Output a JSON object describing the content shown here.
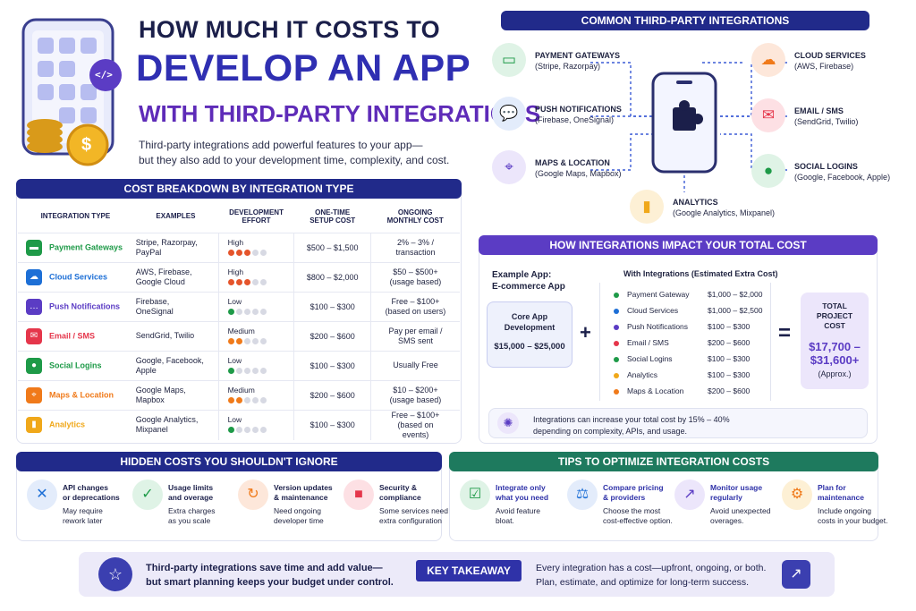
{
  "title": {
    "line1": "HOW MUCH IT COSTS TO",
    "line2": "DEVELOP AN APP",
    "line3": "WITH THIRD-PARTY INTEGRATIONS"
  },
  "intro": {
    "line1": "Third-party integrations add powerful features to your app—",
    "line2": "but they also add to your development time, complexity, and cost."
  },
  "cost_breakdown": {
    "header": "COST BREAKDOWN BY INTEGRATION TYPE",
    "columns": [
      "INTEGRATION TYPE",
      "EXAMPLES",
      "DEVELOPMENT EFFORT",
      "ONE-TIME SETUP COST",
      "ONGOING MONTHLY COST"
    ],
    "rows": [
      {
        "name": "Payment Gateways",
        "examples": "Stripe, Razorpay, PayPal",
        "effort": "High",
        "filled": 3,
        "setup": "$500 – $1,500",
        "monthly": "2% – 3% / transaction",
        "color": "#1e9a48",
        "icon": "credit-card-icon",
        "glyph": "▬"
      },
      {
        "name": "Cloud Services",
        "examples": "AWS, Firebase, Google Cloud",
        "effort": "High",
        "filled": 3,
        "setup": "$800 – $2,000",
        "monthly": "$50 – $500+ (usage based)",
        "color": "#1d6fd6",
        "icon": "cloud-upload-icon",
        "glyph": "☁"
      },
      {
        "name": "Push Notifications",
        "examples": "Firebase, OneSignal",
        "effort": "Low",
        "filled": 1,
        "setup": "$100 – $300",
        "monthly": "Free – $100+ (based on users)",
        "color": "#5b3cc4",
        "icon": "chat-bubble-icon",
        "glyph": "…"
      },
      {
        "name": "Email / SMS",
        "examples": "SendGrid, Twilio",
        "effort": "Medium",
        "filled": 2,
        "setup": "$200 – $600",
        "monthly": "Pay per email / SMS sent",
        "color": "#e5364b",
        "icon": "mail-icon",
        "glyph": "✉"
      },
      {
        "name": "Social Logins",
        "examples": "Google, Facebook, Apple",
        "effort": "Low",
        "filled": 1,
        "setup": "$100 – $300",
        "monthly": "Usually Free",
        "color": "#1e9a48",
        "icon": "user-icon",
        "glyph": "●"
      },
      {
        "name": "Maps & Location",
        "examples": "Google Maps, Mapbox",
        "effort": "Medium",
        "filled": 2,
        "setup": "$200 – $600",
        "monthly": "$10 – $200+ (usage based)",
        "color": "#f07a1a",
        "icon": "location-pin-icon",
        "glyph": "⌖"
      },
      {
        "name": "Analytics",
        "examples": "Google Analytics, Mixpanel",
        "effort": "Low",
        "filled": 1,
        "setup": "$100 – $300",
        "monthly": "Free – $100+ (based on events)",
        "color": "#f0a81a",
        "icon": "bar-chart-icon",
        "glyph": "▮"
      }
    ]
  },
  "integrations": {
    "header": "COMMON THIRD-PARTY INTEGRATIONS",
    "items": [
      {
        "title": "PAYMENT GATEWAYS",
        "sub": "(Stripe, Razorpay)",
        "icon": "credit-card-icon",
        "glyph": "▭",
        "bg": "#dff3e6",
        "fg": "#1e9a48"
      },
      {
        "title": "PUSH NOTIFICATIONS",
        "sub": "(Firebase, OneSignal)",
        "icon": "chat-bubble-icon",
        "glyph": "💬",
        "bg": "#e3ecfb",
        "fg": "#1d6fd6"
      },
      {
        "title": "MAPS & LOCATION",
        "sub": "(Google Maps, Mapbox)",
        "icon": "location-pin-icon",
        "glyph": "⌖",
        "bg": "#ece6fb",
        "fg": "#5b3cc4"
      },
      {
        "title": "CLOUD SERVICES",
        "sub": "(AWS, Firebase)",
        "icon": "cloud-icon",
        "glyph": "☁",
        "bg": "#fde7da",
        "fg": "#f07a1a"
      },
      {
        "title": "EMAIL / SMS",
        "sub": "(SendGrid, Twilio)",
        "icon": "mail-icon",
        "glyph": "✉",
        "bg": "#fde0e4",
        "fg": "#e5364b"
      },
      {
        "title": "SOCIAL LOGINS",
        "sub": "(Google, Facebook, Apple)",
        "icon": "user-icon",
        "glyph": "●",
        "bg": "#dff3e6",
        "fg": "#1e9a48"
      },
      {
        "title": "ANALYTICS",
        "sub": "(Google Analytics, Mixpanel)",
        "icon": "bar-chart-icon",
        "glyph": "▮",
        "bg": "#fdf0d5",
        "fg": "#f0a81a"
      }
    ]
  },
  "impact": {
    "header": "HOW INTEGRATIONS IMPACT YOUR TOTAL COST",
    "example_line1": "Example App:",
    "example_line2": "E-commerce App",
    "core_label": "Core App Development",
    "core_cost": "$15,000 – $25,000",
    "with_label": "With Integrations (Estimated Extra Cost)",
    "items": [
      {
        "name": "Payment Gateway",
        "cost": "$1,000 – $2,000",
        "color": "#1e9a48"
      },
      {
        "name": "Cloud Services",
        "cost": "$1,000 – $2,500",
        "color": "#1d6fd6"
      },
      {
        "name": "Push Notifications",
        "cost": "$100 – $300",
        "color": "#5b3cc4"
      },
      {
        "name": "Email / SMS",
        "cost": "$200 – $600",
        "color": "#e5364b"
      },
      {
        "name": "Social Logins",
        "cost": "$100 – $300",
        "color": "#1e9a48"
      },
      {
        "name": "Analytics",
        "cost": "$100 – $300",
        "color": "#f0a81a"
      },
      {
        "name": "Maps & Location",
        "cost": "$200 – $600",
        "color": "#f07a1a"
      }
    ],
    "plus": "+",
    "equals": "=",
    "total_label": "TOTAL PROJECT COST",
    "total_line1": "$17,700 –",
    "total_line2": "$31,600+",
    "total_note": "(Approx.)",
    "note_line1": "Integrations can increase your total cost by 15% – 40%",
    "note_line2": "depending on complexity, APIs, and usage."
  },
  "hidden": {
    "header": "HIDDEN COSTS YOU SHOULDN'T IGNORE",
    "items": [
      {
        "t1": "API changes",
        "t2": "or deprecations",
        "s1": "May require",
        "s2": "rework later",
        "icon": "tools-icon",
        "glyph": "✕",
        "bg": "#e3ecfb",
        "fg": "#1d6fd6"
      },
      {
        "t1": "Usage limits",
        "t2": "and overage",
        "s1": "Extra charges",
        "s2": "as you scale",
        "icon": "shield-check-icon",
        "glyph": "✓",
        "bg": "#dff3e6",
        "fg": "#1e9a48"
      },
      {
        "t1": "Version updates",
        "t2": "& maintenance",
        "s1": "Need ongoing",
        "s2": "developer time",
        "icon": "refresh-icon",
        "glyph": "↻",
        "bg": "#fde7da",
        "fg": "#f07a1a"
      },
      {
        "t1": "Security &",
        "t2": "compliance",
        "s1": "Some services need",
        "s2": "extra configuration",
        "icon": "lock-icon",
        "glyph": "■",
        "bg": "#fde0e4",
        "fg": "#e5364b"
      }
    ]
  },
  "tips": {
    "header": "TIPS TO OPTIMIZE INTEGRATION COSTS",
    "items": [
      {
        "t1": "Integrate only",
        "t2": "what you need",
        "s1": "Avoid feature",
        "s2": "bloat.",
        "icon": "checklist-icon",
        "glyph": "☑",
        "bg": "#dff3e6",
        "fg": "#1e9a48"
      },
      {
        "t1": "Compare pricing",
        "t2": "& providers",
        "s1": "Choose the most",
        "s2": "cost-effective option.",
        "icon": "scale-icon",
        "glyph": "⚖",
        "bg": "#e3ecfb",
        "fg": "#1d6fd6"
      },
      {
        "t1": "Monitor usage",
        "t2": "regularly",
        "s1": "Avoid unexpected",
        "s2": "overages.",
        "icon": "trend-chart-icon",
        "glyph": "↗",
        "bg": "#ece6fb",
        "fg": "#5b3cc4"
      },
      {
        "t1": "Plan for",
        "t2": "maintenance",
        "s1": "Include ongoing",
        "s2": "costs in your budget.",
        "icon": "gear-icon",
        "glyph": "⚙",
        "bg": "#fdf0d5",
        "fg": "#f07a1a"
      }
    ]
  },
  "takeaway": {
    "left1": "Third-party integrations save time and add value—",
    "left2": "but smart planning keeps your budget under control.",
    "badge": "KEY TAKEAWAY",
    "right1": "Every integration has a cost—upfront, ongoing, or both.",
    "right2": "Plan, estimate, and optimize for long-term success."
  },
  "hero": {
    "code_glyph": "</>",
    "coin_glyph": "$"
  }
}
